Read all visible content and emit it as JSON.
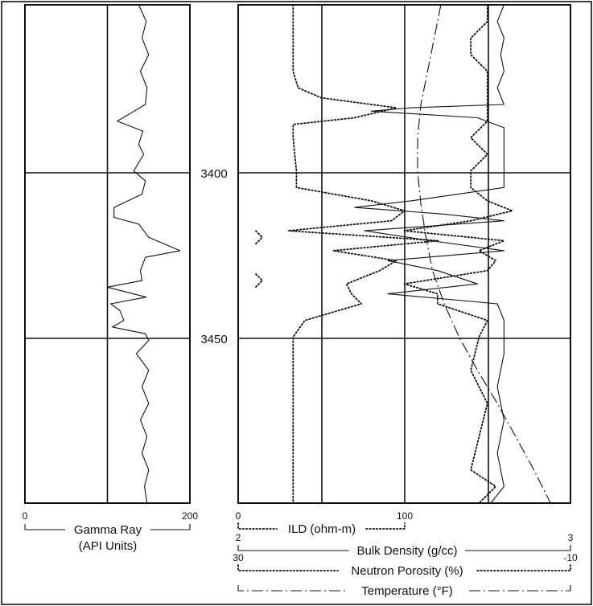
{
  "chart_data": {
    "type": "line",
    "depth_ticks": [
      "3400",
      "3450"
    ],
    "depth_axis": {
      "ylim": [
        3350,
        3500
      ],
      "inverted": true,
      "grid": true
    },
    "tracks": [
      {
        "name": "track-1",
        "curves": [
          {
            "name": "Gamma Ray",
            "units": "(API Units)",
            "scale": [
              "0",
              "200"
            ],
            "range": [
              0,
              200
            ],
            "style": "solid",
            "points": [
              [
                3350,
                138
              ],
              [
                3355,
                147
              ],
              [
                3360,
                142
              ],
              [
                3365,
                150
              ],
              [
                3370,
                140
              ],
              [
                3375,
                148
              ],
              [
                3380,
                146
              ],
              [
                3385,
                112
              ],
              [
                3388,
                143
              ],
              [
                3392,
                138
              ],
              [
                3395,
                144
              ],
              [
                3400,
                132
              ],
              [
                3403,
                146
              ],
              [
                3407,
                142
              ],
              [
                3411,
                108
              ],
              [
                3414,
                108
              ],
              [
                3416,
                138
              ],
              [
                3420,
                150
              ],
              [
                3424,
                188
              ],
              [
                3426,
                146
              ],
              [
                3430,
                140
              ],
              [
                3433,
                142
              ],
              [
                3435,
                100
              ],
              [
                3438,
                147
              ],
              [
                3440,
                104
              ],
              [
                3442,
                115
              ],
              [
                3445,
                120
              ],
              [
                3447,
                106
              ],
              [
                3449,
                146
              ],
              [
                3451,
                150
              ],
              [
                3455,
                135
              ],
              [
                3460,
                150
              ],
              [
                3465,
                142
              ],
              [
                3470,
                150
              ],
              [
                3475,
                140
              ],
              [
                3480,
                148
              ],
              [
                3485,
                142
              ],
              [
                3490,
                150
              ],
              [
                3495,
                145
              ],
              [
                3500,
                148
              ]
            ]
          }
        ]
      },
      {
        "name": "track-2",
        "curves": [
          {
            "name": "ILD (ohm-m)",
            "scale": [
              "0",
              "100"
            ],
            "range": [
              0,
              100
            ],
            "style": "dotted",
            "points": [
              [
                3350,
                33
              ],
              [
                3360,
                33
              ],
              [
                3370,
                33
              ],
              [
                3375,
                36
              ],
              [
                3378,
                50
              ],
              [
                3381,
                95
              ],
              [
                3384,
                70
              ],
              [
                3386,
                33
              ],
              [
                3390,
                33
              ],
              [
                3400,
                35
              ],
              [
                3405,
                35
              ],
              [
                3409,
                80
              ],
              [
                3412,
                100
              ],
              [
                3415,
                92
              ],
              [
                3418,
                30
              ],
              [
                3421,
                120
              ],
              [
                3424,
                57
              ],
              [
                3427,
                95
              ],
              [
                3430,
                85
              ],
              [
                3434,
                65
              ],
              [
                3437,
                68
              ],
              [
                3440,
                74
              ],
              [
                3445,
                40
              ],
              [
                3450,
                33
              ],
              [
                3460,
                33
              ],
              [
                3470,
                33
              ],
              [
                3480,
                33
              ],
              [
                3490,
                33
              ],
              [
                3500,
                33
              ]
            ]
          },
          {
            "name": "Bulk Density (g/cc)",
            "scale": [
              "2",
              "3"
            ],
            "range": [
              2,
              3
            ],
            "style": "solid",
            "points": [
              [
                3350,
                2.8
              ],
              [
                3355,
                2.78
              ],
              [
                3360,
                2.8
              ],
              [
                3365,
                2.79
              ],
              [
                3370,
                2.8
              ],
              [
                3375,
                2.78
              ],
              [
                3380,
                2.8
              ],
              [
                3381,
                2.52
              ],
              [
                3382,
                2.4
              ],
              [
                3384,
                2.72
              ],
              [
                3387,
                2.8
              ],
              [
                3392,
                2.8
              ],
              [
                3400,
                2.8
              ],
              [
                3405,
                2.8
              ],
              [
                3409,
                2.52
              ],
              [
                3411,
                2.35
              ],
              [
                3413,
                2.62
              ],
              [
                3415,
                2.8
              ],
              [
                3418,
                2.38
              ],
              [
                3421,
                2.58
              ],
              [
                3424,
                2.8
              ],
              [
                3427,
                2.45
              ],
              [
                3430,
                2.6
              ],
              [
                3434,
                2.72
              ],
              [
                3437,
                2.45
              ],
              [
                3440,
                2.78
              ],
              [
                3445,
                2.8
              ],
              [
                3455,
                2.8
              ],
              [
                3465,
                2.78
              ],
              [
                3475,
                2.8
              ],
              [
                3485,
                2.78
              ],
              [
                3495,
                2.8
              ],
              [
                3500,
                2.76
              ]
            ]
          },
          {
            "name": "Neutron Porosity (%)",
            "scale": [
              "30",
              "-10"
            ],
            "range": [
              30,
              -10
            ],
            "style": "dotted",
            "points": [
              [
                3350,
                0
              ],
              [
                3355,
                0
              ],
              [
                3360,
                2
              ],
              [
                3365,
                2
              ],
              [
                3370,
                0
              ],
              [
                3375,
                0
              ],
              [
                3380,
                0
              ],
              [
                3385,
                0
              ],
              [
                3390,
                2
              ],
              [
                3395,
                0
              ],
              [
                3400,
                2
              ],
              [
                3405,
                2
              ],
              [
                3409,
                0
              ],
              [
                3412,
                -3
              ],
              [
                3415,
                2
              ],
              [
                3418,
                10
              ],
              [
                3421,
                -2
              ],
              [
                3424,
                1
              ],
              [
                3427,
                -1
              ],
              [
                3430,
                0
              ],
              [
                3434,
                10
              ],
              [
                3437,
                6
              ],
              [
                3440,
                6
              ],
              [
                3445,
                0
              ],
              [
                3450,
                1
              ],
              [
                3460,
                2
              ],
              [
                3470,
                0
              ],
              [
                3480,
                1
              ],
              [
                3490,
                2
              ],
              [
                3495,
                -1
              ],
              [
                3500,
                1
              ]
            ]
          },
          {
            "name": "Temperature (°F)",
            "style": "dashdot",
            "points": [
              [
                3350,
                122
              ],
              [
                3360,
                118
              ],
              [
                3370,
                114
              ],
              [
                3380,
                110
              ],
              [
                3390,
                108
              ],
              [
                3400,
                108
              ],
              [
                3410,
                110
              ],
              [
                3420,
                113
              ],
              [
                3430,
                117
              ],
              [
                3440,
                124
              ],
              [
                3450,
                133
              ],
              [
                3460,
                144
              ],
              [
                3470,
                156
              ],
              [
                3480,
                167
              ],
              [
                3490,
                178
              ],
              [
                3500,
                188
              ]
            ]
          }
        ],
        "annotations": [
          {
            "text": "",
            "depth": 3420,
            "shape": "caret"
          },
          {
            "text": "",
            "depth": 3433,
            "shape": "caret"
          }
        ]
      }
    ]
  }
}
